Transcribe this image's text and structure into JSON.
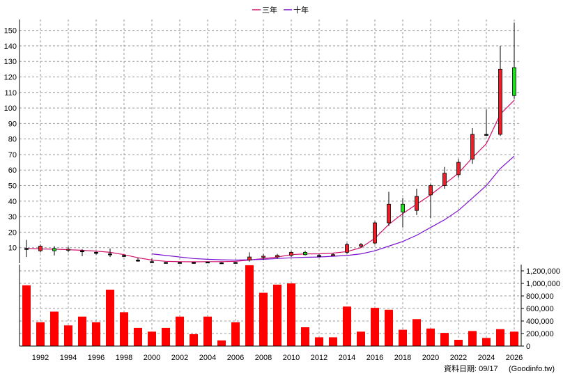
{
  "legend": {
    "ma3_label": "三年",
    "ma10_label": "十年"
  },
  "footer": {
    "date_label": "資料日期: 09/17",
    "source": "(Goodinfo.tw)"
  },
  "colors": {
    "up": "#e8202a",
    "down": "#22dd22",
    "ma3": "#d0106a",
    "ma10": "#7a10d0",
    "grid": "#9a9a9a",
    "volume": "#ff0000"
  },
  "chart_data": [
    {
      "type": "candlestick",
      "title": "",
      "ylim": [
        0,
        157
      ],
      "yticks": [
        10,
        20,
        30,
        40,
        50,
        60,
        70,
        80,
        90,
        100,
        110,
        120,
        130,
        140,
        150
      ],
      "xticks": [
        "1992",
        "1994",
        "1996",
        "1998",
        "2000",
        "2002",
        "2004",
        "2006",
        "2008",
        "2010",
        "2012",
        "2014",
        "2016",
        "2018",
        "2020",
        "2022",
        "2024",
        "2026"
      ],
      "grid": true,
      "legend_position": "top-center",
      "candles": [
        {
          "year": 1991,
          "open": 9.5,
          "close": 9.5,
          "high": 15,
          "low": 4
        },
        {
          "year": 1992,
          "open": 8,
          "close": 11,
          "high": 12,
          "low": 7
        },
        {
          "year": 1993,
          "open": 9.5,
          "close": 8,
          "high": 11,
          "low": 5
        },
        {
          "year": 1994,
          "open": 8.5,
          "close": 9,
          "high": 10.5,
          "low": 7
        },
        {
          "year": 1995,
          "open": 8,
          "close": 8,
          "high": 9,
          "low": 4.5
        },
        {
          "year": 1996,
          "open": 7,
          "close": 7,
          "high": 7.5,
          "low": 5.5
        },
        {
          "year": 1997,
          "open": 6,
          "close": 6,
          "high": 9.5,
          "low": 4
        },
        {
          "year": 1998,
          "open": 5,
          "close": 5,
          "high": 5.5,
          "low": 4
        },
        {
          "year": 1999,
          "open": 2,
          "close": 2,
          "high": 3.5,
          "low": 1
        },
        {
          "year": 2000,
          "open": 1,
          "close": 1,
          "high": 3,
          "low": 0.5
        },
        {
          "year": 2001,
          "open": 0.5,
          "close": 0.5,
          "high": 0.8,
          "low": 0.2
        },
        {
          "year": 2002,
          "open": 0.5,
          "close": 0.5,
          "high": 0.8,
          "low": 0.2
        },
        {
          "year": 2003,
          "open": 0.5,
          "close": 0.5,
          "high": 0.8,
          "low": 0.2
        },
        {
          "year": 2004,
          "open": 0.8,
          "close": 0.8,
          "high": 1,
          "low": 0.5
        },
        {
          "year": 2005,
          "open": 0.3,
          "close": 0.3,
          "high": 0.6,
          "low": 0.1
        },
        {
          "year": 2006,
          "open": 0.5,
          "close": 0.5,
          "high": 0.8,
          "low": 0.2
        },
        {
          "year": 2007,
          "open": 2,
          "close": 4,
          "high": 7,
          "low": 1
        },
        {
          "year": 2008,
          "open": 4,
          "close": 4.5,
          "high": 6,
          "low": 2
        },
        {
          "year": 2009,
          "open": 4,
          "close": 5,
          "high": 6,
          "low": 3
        },
        {
          "year": 2010,
          "open": 5,
          "close": 7,
          "high": 8,
          "low": 4
        },
        {
          "year": 2011,
          "open": 7,
          "close": 5.5,
          "high": 8,
          "low": 5
        },
        {
          "year": 2012,
          "open": 5,
          "close": 5,
          "high": 6,
          "low": 4.5
        },
        {
          "year": 2013,
          "open": 5,
          "close": 5.5,
          "high": 6.5,
          "low": 5
        },
        {
          "year": 2014,
          "open": 7,
          "close": 12,
          "high": 13,
          "low": 6
        },
        {
          "year": 2015,
          "open": 11,
          "close": 12,
          "high": 13,
          "low": 10
        },
        {
          "year": 2016,
          "open": 13,
          "close": 26,
          "high": 27,
          "low": 12
        },
        {
          "year": 2017,
          "open": 26,
          "close": 38,
          "high": 46,
          "low": 24
        },
        {
          "year": 2018,
          "open": 38,
          "close": 33,
          "high": 42,
          "low": 23
        },
        {
          "year": 2019,
          "open": 34,
          "close": 43,
          "high": 48,
          "low": 31
        },
        {
          "year": 2020,
          "open": 44,
          "close": 50,
          "high": 51,
          "low": 29
        },
        {
          "year": 2021,
          "open": 50,
          "close": 58,
          "high": 62,
          "low": 48
        },
        {
          "year": 2022,
          "open": 57,
          "close": 65,
          "high": 67,
          "low": 55
        },
        {
          "year": 2023,
          "open": 67,
          "close": 83,
          "high": 87,
          "low": 64
        },
        {
          "year": 2024,
          "open": 83,
          "close": 83,
          "high": 99,
          "low": 82
        },
        {
          "year": 2025,
          "open": 83,
          "close": 125,
          "high": 140,
          "low": 82
        },
        {
          "year": 2026,
          "open": 126,
          "close": 108,
          "high": 155,
          "low": 106
        }
      ],
      "series": [
        {
          "name": "三年",
          "values": [
            [
              1991,
              9.5
            ],
            [
              1992,
              9.2
            ],
            [
              1993,
              9
            ],
            [
              1994,
              8.7
            ],
            [
              1995,
              8.3
            ],
            [
              1996,
              7.8
            ],
            [
              1997,
              7
            ],
            [
              1998,
              5.5
            ],
            [
              1999,
              3.5
            ],
            [
              2000,
              2
            ],
            [
              2001,
              1.2
            ],
            [
              2002,
              1
            ],
            [
              2003,
              0.9
            ],
            [
              2004,
              1
            ],
            [
              2005,
              1
            ],
            [
              2006,
              1.2
            ],
            [
              2007,
              2
            ],
            [
              2008,
              3
            ],
            [
              2009,
              4
            ],
            [
              2010,
              5.5
            ],
            [
              2011,
              6
            ],
            [
              2012,
              6
            ],
            [
              2013,
              6.5
            ],
            [
              2014,
              7.5
            ],
            [
              2015,
              10
            ],
            [
              2016,
              16
            ],
            [
              2017,
              25
            ],
            [
              2018,
              32
            ],
            [
              2019,
              38
            ],
            [
              2020,
              44
            ],
            [
              2021,
              51
            ],
            [
              2022,
              58
            ],
            [
              2023,
              68
            ],
            [
              2024,
              77
            ],
            [
              2025,
              96
            ],
            [
              2026,
              105
            ]
          ]
        },
        {
          "name": "十年",
          "values": [
            [
              2000,
              6
            ],
            [
              2001,
              5
            ],
            [
              2002,
              4
            ],
            [
              2003,
              3
            ],
            [
              2004,
              2.5
            ],
            [
              2005,
              2.2
            ],
            [
              2006,
              2
            ],
            [
              2007,
              2.2
            ],
            [
              2008,
              2.5
            ],
            [
              2009,
              3
            ],
            [
              2010,
              3.5
            ],
            [
              2011,
              3.8
            ],
            [
              2012,
              4
            ],
            [
              2013,
              4.5
            ],
            [
              2014,
              5
            ],
            [
              2015,
              6
            ],
            [
              2016,
              8
            ],
            [
              2017,
              11
            ],
            [
              2018,
              14
            ],
            [
              2019,
              18
            ],
            [
              2020,
              23
            ],
            [
              2021,
              28
            ],
            [
              2022,
              34
            ],
            [
              2023,
              42
            ],
            [
              2024,
              50
            ],
            [
              2025,
              61
            ],
            [
              2026,
              69
            ]
          ]
        }
      ]
    },
    {
      "type": "bar",
      "title": "",
      "ylim": [
        0,
        1300000
      ],
      "yticks": [
        "0",
        "200,000",
        "400,000",
        "600,000",
        "800,000",
        "1,000,000",
        "1,200,000"
      ],
      "grid": true,
      "categories": [
        1991,
        1992,
        1993,
        1994,
        1995,
        1996,
        1997,
        1998,
        1999,
        2000,
        2001,
        2002,
        2003,
        2004,
        2005,
        2006,
        2007,
        2008,
        2009,
        2010,
        2011,
        2012,
        2013,
        2014,
        2015,
        2016,
        2017,
        2018,
        2019,
        2020,
        2021,
        2022,
        2023,
        2024,
        2025,
        2026
      ],
      "values": [
        970000,
        380000,
        550000,
        330000,
        470000,
        380000,
        900000,
        540000,
        290000,
        230000,
        290000,
        470000,
        190000,
        470000,
        90000,
        380000,
        1290000,
        850000,
        980000,
        1000000,
        300000,
        140000,
        140000,
        630000,
        230000,
        610000,
        580000,
        260000,
        430000,
        280000,
        210000,
        100000,
        240000,
        130000,
        270000,
        230000
      ]
    }
  ]
}
